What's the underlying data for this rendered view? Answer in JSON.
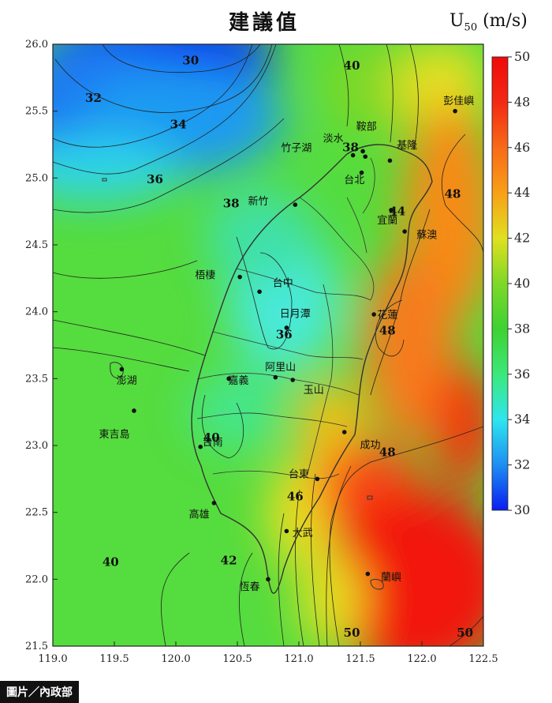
{
  "title": "建議值",
  "unit": {
    "symbol": "U",
    "subscript": "50",
    "units": "(m/s)"
  },
  "credit": "圖片／內政部",
  "colorbar": {
    "min": 30,
    "max": 50,
    "ticks": [
      "30",
      "32",
      "34",
      "36",
      "38",
      "40",
      "42",
      "44",
      "46",
      "48",
      "50"
    ],
    "stops": [
      "#0a1ef0",
      "#1e8ef2",
      "#2ee6ee",
      "#3ce87a",
      "#3ed232",
      "#7ed828",
      "#e0e020",
      "#f8a018",
      "#f86a18",
      "#f22a14",
      "#f00a0a"
    ]
  },
  "axes": {
    "x_ticks": [
      "119.0",
      "119.5",
      "120.0",
      "120.5",
      "121.0",
      "121.5",
      "122.0",
      "122.5"
    ],
    "y_ticks": [
      "26.0",
      "25.5",
      "25.0",
      "24.5",
      "24.0",
      "23.5",
      "23.0",
      "22.5",
      "22.0",
      "21.5"
    ]
  },
  "contour_labels": [
    {
      "text": "30",
      "lon": 120.12,
      "lat": 25.85
    },
    {
      "text": "32",
      "lon": 119.33,
      "lat": 25.57
    },
    {
      "text": "34",
      "lon": 120.02,
      "lat": 25.37
    },
    {
      "text": "36",
      "lon": 119.83,
      "lat": 24.96
    },
    {
      "text": "38",
      "lon": 120.45,
      "lat": 24.78
    },
    {
      "text": "38",
      "lon": 121.42,
      "lat": 25.2
    },
    {
      "text": "40",
      "lon": 121.43,
      "lat": 25.81
    },
    {
      "text": "44",
      "lon": 121.8,
      "lat": 24.72
    },
    {
      "text": "48",
      "lon": 122.25,
      "lat": 24.85
    },
    {
      "text": "36",
      "lon": 120.88,
      "lat": 23.8
    },
    {
      "text": "48",
      "lon": 121.72,
      "lat": 23.83
    },
    {
      "text": "40",
      "lon": 120.29,
      "lat": 23.03
    },
    {
      "text": "48",
      "lon": 121.72,
      "lat": 22.92
    },
    {
      "text": "46",
      "lon": 120.97,
      "lat": 22.59
    },
    {
      "text": "40",
      "lon": 119.47,
      "lat": 22.1
    },
    {
      "text": "42",
      "lon": 120.43,
      "lat": 22.11
    },
    {
      "text": "50",
      "lon": 121.43,
      "lat": 21.57
    },
    {
      "text": "50",
      "lon": 122.35,
      "lat": 21.57
    }
  ],
  "places": [
    {
      "name": "彭佳嶼",
      "lon": 122.3,
      "lat": 25.55,
      "dot": true,
      "dlon": 122.27,
      "dlat": 25.5
    },
    {
      "name": "鞍部",
      "lon": 121.55,
      "lat": 25.36,
      "dot": true,
      "dlon": 121.52,
      "dlat": 25.2
    },
    {
      "name": "淡水",
      "lon": 121.28,
      "lat": 25.27,
      "dot": true,
      "dlon": 121.44,
      "dlat": 25.17
    },
    {
      "name": "竹子湖",
      "lon": 120.98,
      "lat": 25.2,
      "dot": true,
      "dlon": 121.54,
      "dlat": 25.16
    },
    {
      "name": "基隆",
      "lon": 121.88,
      "lat": 25.22,
      "dot": true,
      "dlon": 121.74,
      "dlat": 25.13
    },
    {
      "name": "台北",
      "lon": 121.45,
      "lat": 24.96,
      "dot": true,
      "dlon": 121.51,
      "dlat": 25.04
    },
    {
      "name": "新竹",
      "lon": 120.67,
      "lat": 24.8,
      "dot": true,
      "dlon": 120.97,
      "dlat": 24.8
    },
    {
      "name": "宜蘭",
      "lon": 121.72,
      "lat": 24.66,
      "dot": true,
      "dlon": 121.75,
      "dlat": 24.76
    },
    {
      "name": "蘇澳",
      "lon": 122.04,
      "lat": 24.55,
      "dot": true,
      "dlon": 121.86,
      "dlat": 24.6
    },
    {
      "name": "梧棲",
      "lon": 120.24,
      "lat": 24.25,
      "dot": true,
      "dlon": 120.52,
      "dlat": 24.26
    },
    {
      "name": "台中",
      "lon": 120.87,
      "lat": 24.19,
      "dot": true,
      "dlon": 120.68,
      "dlat": 24.15
    },
    {
      "name": "日月潭",
      "lon": 120.97,
      "lat": 23.96,
      "dot": true,
      "dlon": 120.9,
      "dlat": 23.88
    },
    {
      "name": "花蓮",
      "lon": 121.72,
      "lat": 23.95,
      "dot": true,
      "dlon": 121.61,
      "dlat": 23.98
    },
    {
      "name": "阿里山",
      "lon": 120.85,
      "lat": 23.56,
      "dot": true,
      "dlon": 120.81,
      "dlat": 23.51
    },
    {
      "name": "澎湖",
      "lon": 119.6,
      "lat": 23.46,
      "dot": true,
      "dlon": 119.56,
      "dlat": 23.57
    },
    {
      "name": "嘉義",
      "lon": 120.51,
      "lat": 23.46,
      "dot": true,
      "dlon": 120.43,
      "dlat": 23.5
    },
    {
      "name": "玉山",
      "lon": 121.12,
      "lat": 23.39,
      "dot": true,
      "dlon": 120.95,
      "dlat": 23.49
    },
    {
      "name": "東吉島",
      "lon": 119.5,
      "lat": 23.06,
      "dot": true,
      "dlon": 119.66,
      "dlat": 23.26
    },
    {
      "name": "台南",
      "lon": 120.3,
      "lat": 23.0,
      "dot": true,
      "dlon": 120.2,
      "dlat": 22.99
    },
    {
      "name": "成功",
      "lon": 121.58,
      "lat": 22.98,
      "dot": true,
      "dlon": 121.37,
      "dlat": 23.1
    },
    {
      "name": "台東",
      "lon": 121.0,
      "lat": 22.76,
      "dot": true,
      "dlon": 121.15,
      "dlat": 22.75
    },
    {
      "name": "高雄",
      "lon": 120.19,
      "lat": 22.46,
      "dot": true,
      "dlon": 120.31,
      "dlat": 22.57
    },
    {
      "name": "大武",
      "lon": 121.03,
      "lat": 22.32,
      "dot": true,
      "dlon": 120.9,
      "dlat": 22.36
    },
    {
      "name": "恆春",
      "lon": 120.6,
      "lat": 21.92,
      "dot": true,
      "dlon": 120.75,
      "dlat": 22.0
    },
    {
      "name": "蘭嶼",
      "lon": 121.75,
      "lat": 21.99,
      "dot": true,
      "dlon": 121.56,
      "dlat": 22.04
    }
  ]
}
